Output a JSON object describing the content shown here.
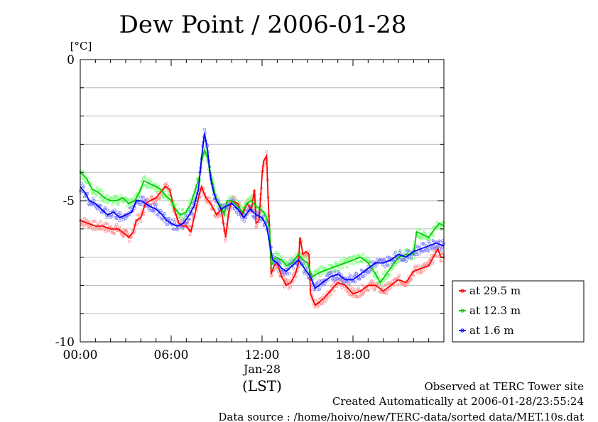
{
  "chart_data": {
    "type": "line",
    "title": "Dew Point / 2006-01-28",
    "yunit": "[°C]",
    "xlabel": "(LST)",
    "date_label": "Jan-28",
    "ylim": [
      -10,
      0
    ],
    "xlim_hours": [
      0,
      24
    ],
    "y_ticks": [
      0,
      -5,
      -10
    ],
    "y_tick_labels": [
      "0",
      "-5",
      "-10"
    ],
    "y_grid": [
      -1,
      -2,
      -3,
      -4,
      -5,
      -6,
      -7,
      -8,
      -9
    ],
    "x_ticks_hours": [
      0,
      6,
      12,
      18
    ],
    "x_tick_labels": [
      "00:00",
      "06:00",
      "12:00",
      "18:00"
    ],
    "grid": true,
    "legend_position": "right",
    "series": [
      {
        "name": "at 29.5 m",
        "color": "#ff0000",
        "scatter_color": "#ff9090",
        "points": [
          [
            0,
            -5.7
          ],
          [
            0.5,
            -5.8
          ],
          [
            1,
            -5.9
          ],
          [
            1.5,
            -5.9
          ],
          [
            2,
            -6.0
          ],
          [
            2.5,
            -6.0
          ],
          [
            3,
            -6.2
          ],
          [
            3.2,
            -6.3
          ],
          [
            3.5,
            -6.1
          ],
          [
            3.7,
            -5.7
          ],
          [
            4,
            -5.6
          ],
          [
            4.3,
            -5.1
          ],
          [
            4.6,
            -5.0
          ],
          [
            5,
            -4.9
          ],
          [
            5.3,
            -4.7
          ],
          [
            5.6,
            -4.5
          ],
          [
            5.9,
            -4.6
          ],
          [
            6.2,
            -5.3
          ],
          [
            6.5,
            -5.8
          ],
          [
            6.8,
            -5.9
          ],
          [
            7,
            -5.9
          ],
          [
            7.3,
            -6.1
          ],
          [
            7.6,
            -5.4
          ],
          [
            7.8,
            -4.9
          ],
          [
            8,
            -4.5
          ],
          [
            8.3,
            -4.9
          ],
          [
            8.6,
            -5.1
          ],
          [
            8.8,
            -5.3
          ],
          [
            9,
            -5.5
          ],
          [
            9.3,
            -5.3
          ],
          [
            9.6,
            -6.3
          ],
          [
            9.8,
            -5.4
          ],
          [
            10,
            -5.0
          ],
          [
            10.4,
            -5.1
          ],
          [
            10.7,
            -5.5
          ],
          [
            11,
            -5.1
          ],
          [
            11.3,
            -5.3
          ],
          [
            11.5,
            -4.6
          ],
          [
            11.6,
            -5.8
          ],
          [
            11.8,
            -5.7
          ],
          [
            12,
            -4.1
          ],
          [
            12.1,
            -3.6
          ],
          [
            12.3,
            -3.4
          ],
          [
            12.4,
            -4.9
          ],
          [
            12.5,
            -6.1
          ],
          [
            12.6,
            -7.6
          ],
          [
            12.8,
            -7.3
          ],
          [
            13,
            -7.2
          ],
          [
            13.3,
            -7.7
          ],
          [
            13.6,
            -8.0
          ],
          [
            13.9,
            -7.9
          ],
          [
            14.2,
            -7.6
          ],
          [
            14.4,
            -7.2
          ],
          [
            14.5,
            -6.3
          ],
          [
            14.7,
            -6.9
          ],
          [
            14.9,
            -6.8
          ],
          [
            15.1,
            -6.9
          ],
          [
            15.2,
            -8.3
          ],
          [
            15.5,
            -8.7
          ],
          [
            16,
            -8.5
          ],
          [
            16.5,
            -8.2
          ],
          [
            17,
            -7.9
          ],
          [
            17.5,
            -8.0
          ],
          [
            18,
            -8.3
          ],
          [
            18.5,
            -8.2
          ],
          [
            19,
            -8.0
          ],
          [
            19.5,
            -8.0
          ],
          [
            20,
            -8.2
          ],
          [
            20.5,
            -8.0
          ],
          [
            21,
            -7.8
          ],
          [
            21.5,
            -7.9
          ],
          [
            22,
            -7.5
          ],
          [
            22.5,
            -7.4
          ],
          [
            23,
            -7.3
          ],
          [
            23.3,
            -7.0
          ],
          [
            23.6,
            -6.7
          ],
          [
            23.8,
            -7.0
          ],
          [
            24,
            -7.0
          ]
        ]
      },
      {
        "name": "at 12.3 m",
        "color": "#00cc00",
        "scatter_color": "#80ff80",
        "points": [
          [
            0,
            -4.0
          ],
          [
            0.4,
            -4.2
          ],
          [
            0.8,
            -4.6
          ],
          [
            1.2,
            -4.7
          ],
          [
            1.6,
            -4.9
          ],
          [
            2,
            -5.0
          ],
          [
            2.4,
            -5.0
          ],
          [
            2.8,
            -4.9
          ],
          [
            3.2,
            -5.1
          ],
          [
            3.6,
            -5.0
          ],
          [
            3.9,
            -4.7
          ],
          [
            4.2,
            -4.3
          ],
          [
            4.6,
            -4.4
          ],
          [
            5,
            -4.5
          ],
          [
            5.3,
            -4.6
          ],
          [
            5.6,
            -4.8
          ],
          [
            6,
            -5.0
          ],
          [
            6.3,
            -5.3
          ],
          [
            6.6,
            -5.5
          ],
          [
            7,
            -5.4
          ],
          [
            7.3,
            -5.1
          ],
          [
            7.6,
            -4.6
          ],
          [
            7.9,
            -4.1
          ],
          [
            8,
            -3.6
          ],
          [
            8.2,
            -3.2
          ],
          [
            8.4,
            -3.5
          ],
          [
            8.7,
            -4.3
          ],
          [
            9,
            -5.0
          ],
          [
            9.3,
            -5.2
          ],
          [
            9.5,
            -5.5
          ],
          [
            9.7,
            -5.0
          ],
          [
            10,
            -5.0
          ],
          [
            10.4,
            -5.2
          ],
          [
            10.7,
            -5.4
          ],
          [
            11,
            -5.1
          ],
          [
            11.3,
            -5.0
          ],
          [
            11.6,
            -5.2
          ],
          [
            11.9,
            -5.3
          ],
          [
            12.1,
            -5.4
          ],
          [
            12.3,
            -5.6
          ],
          [
            12.5,
            -6.0
          ],
          [
            12.6,
            -7.3
          ],
          [
            12.9,
            -7.0
          ],
          [
            13.3,
            -7.1
          ],
          [
            13.6,
            -7.3
          ],
          [
            14,
            -7.2
          ],
          [
            14.4,
            -6.9
          ],
          [
            14.7,
            -7.1
          ],
          [
            15,
            -7.2
          ],
          [
            15.3,
            -7.7
          ],
          [
            15.6,
            -7.6
          ],
          [
            16,
            -7.5
          ],
          [
            16.5,
            -7.4
          ],
          [
            17,
            -7.3
          ],
          [
            17.5,
            -7.2
          ],
          [
            18,
            -7.1
          ],
          [
            18.5,
            -7.0
          ],
          [
            19,
            -7.2
          ],
          [
            19.5,
            -7.6
          ],
          [
            19.8,
            -7.9
          ],
          [
            20.2,
            -7.6
          ],
          [
            20.6,
            -7.3
          ],
          [
            21,
            -7.0
          ],
          [
            21.5,
            -6.9
          ],
          [
            22,
            -6.9
          ],
          [
            22.2,
            -6.1
          ],
          [
            22.6,
            -6.2
          ],
          [
            23,
            -6.3
          ],
          [
            23.4,
            -6.0
          ],
          [
            23.7,
            -5.8
          ],
          [
            24,
            -5.9
          ]
        ]
      },
      {
        "name": "at 1.6 m",
        "color": "#0000ff",
        "scatter_color": "#8080ff",
        "points": [
          [
            0,
            -4.5
          ],
          [
            0.3,
            -4.7
          ],
          [
            0.6,
            -5.0
          ],
          [
            1,
            -5.1
          ],
          [
            1.4,
            -5.3
          ],
          [
            1.8,
            -5.5
          ],
          [
            2.2,
            -5.4
          ],
          [
            2.6,
            -5.6
          ],
          [
            3,
            -5.5
          ],
          [
            3.4,
            -5.4
          ],
          [
            3.7,
            -5.0
          ],
          [
            4,
            -5.0
          ],
          [
            4.3,
            -5.1
          ],
          [
            4.6,
            -5.2
          ],
          [
            5,
            -5.3
          ],
          [
            5.4,
            -5.5
          ],
          [
            5.7,
            -5.7
          ],
          [
            6,
            -5.8
          ],
          [
            6.4,
            -5.9
          ],
          [
            6.8,
            -5.8
          ],
          [
            7.2,
            -5.5
          ],
          [
            7.5,
            -5.2
          ],
          [
            7.8,
            -4.6
          ],
          [
            8,
            -3.5
          ],
          [
            8.2,
            -2.6
          ],
          [
            8.4,
            -3.2
          ],
          [
            8.6,
            -4.2
          ],
          [
            8.8,
            -4.7
          ],
          [
            9,
            -5.0
          ],
          [
            9.3,
            -5.3
          ],
          [
            9.6,
            -5.2
          ],
          [
            10,
            -5.1
          ],
          [
            10.4,
            -5.3
          ],
          [
            10.8,
            -5.6
          ],
          [
            11.2,
            -5.3
          ],
          [
            11.6,
            -5.5
          ],
          [
            12,
            -5.6
          ],
          [
            12.3,
            -5.9
          ],
          [
            12.5,
            -6.5
          ],
          [
            12.7,
            -7.1
          ],
          [
            13,
            -7.2
          ],
          [
            13.3,
            -7.4
          ],
          [
            13.6,
            -7.5
          ],
          [
            14,
            -7.3
          ],
          [
            14.4,
            -7.1
          ],
          [
            14.8,
            -7.4
          ],
          [
            15.2,
            -7.7
          ],
          [
            15.5,
            -8.1
          ],
          [
            16,
            -7.9
          ],
          [
            16.5,
            -7.7
          ],
          [
            17,
            -7.6
          ],
          [
            17.5,
            -7.8
          ],
          [
            18,
            -7.8
          ],
          [
            18.5,
            -7.6
          ],
          [
            19,
            -7.4
          ],
          [
            19.5,
            -7.2
          ],
          [
            20,
            -7.2
          ],
          [
            20.5,
            -7.1
          ],
          [
            21,
            -6.9
          ],
          [
            21.5,
            -7.0
          ],
          [
            22,
            -6.8
          ],
          [
            22.5,
            -6.7
          ],
          [
            23,
            -6.6
          ],
          [
            23.5,
            -6.5
          ],
          [
            24,
            -6.6
          ]
        ]
      }
    ]
  },
  "footer": {
    "line1": "Observed at TERC Tower site",
    "line2": "Created Automatically at 2006-01-28/23:55:24",
    "line3": "Data source : /home/hoivo/new/TERC-data/sorted  data/MET.10s.dat"
  }
}
